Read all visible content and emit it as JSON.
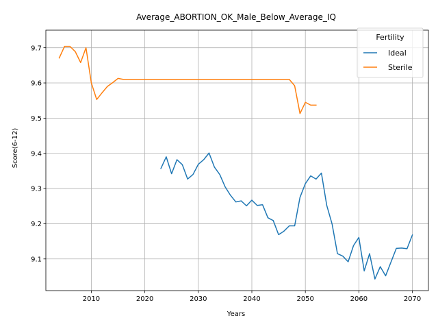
{
  "chart_data": {
    "type": "line",
    "title": "Average_ABORTION_OK_Male_Below_Average_IQ",
    "xlabel": "Years",
    "ylabel": "Score(6-12)",
    "xlim": [
      2001.5,
      2073
    ],
    "ylim": [
      9.01,
      9.75
    ],
    "xticks": [
      2010,
      2020,
      2030,
      2040,
      2050,
      2060,
      2070
    ],
    "yticks": [
      9.1,
      9.2,
      9.3,
      9.4,
      9.5,
      9.6,
      9.7
    ],
    "ytick_labels": [
      "9.1",
      "9.2",
      "9.3",
      "9.4",
      "9.5",
      "9.6",
      "9.7"
    ],
    "grid": true,
    "legend": {
      "title": "Fertility",
      "placement": "top-right"
    },
    "series": [
      {
        "name": "Ideal",
        "color": "#1f77b4",
        "x": [
          2023,
          2024,
          2025,
          2026,
          2027,
          2028,
          2029,
          2030,
          2031,
          2032,
          2033,
          2034,
          2035,
          2036,
          2037,
          2038,
          2039,
          2040,
          2041,
          2042,
          2043,
          2044,
          2045,
          2046,
          2047,
          2048,
          2049,
          2050,
          2051,
          2052,
          2053,
          2054,
          2055,
          2056,
          2057,
          2058,
          2059,
          2060,
          2061,
          2062,
          2063,
          2064,
          2065,
          2066,
          2067,
          2068,
          2069,
          2070
        ],
        "y": [
          9.357,
          9.39,
          9.342,
          9.382,
          9.368,
          9.327,
          9.34,
          9.369,
          9.382,
          9.401,
          9.361,
          9.34,
          9.305,
          9.281,
          9.262,
          9.265,
          9.251,
          9.267,
          9.252,
          9.254,
          9.217,
          9.209,
          9.169,
          9.179,
          9.194,
          9.194,
          9.275,
          9.314,
          9.336,
          9.327,
          9.344,
          9.252,
          9.199,
          9.115,
          9.108,
          9.092,
          9.138,
          9.161,
          9.066,
          9.115,
          9.043,
          9.078,
          9.052,
          9.091,
          9.13,
          9.131,
          9.129,
          9.168
        ]
      },
      {
        "name": "Sterile",
        "color": "#ff7f0e",
        "x": [
          2004,
          2005,
          2006,
          2007,
          2008,
          2009,
          2010,
          2011,
          2012,
          2013,
          2014,
          2015,
          2016,
          2017,
          2018,
          2019,
          2020,
          2021,
          2022,
          2023,
          2024,
          2025,
          2026,
          2027,
          2028,
          2029,
          2030,
          2031,
          2032,
          2033,
          2034,
          2035,
          2036,
          2037,
          2038,
          2039,
          2040,
          2041,
          2042,
          2043,
          2044,
          2045,
          2046,
          2047,
          2048,
          2049,
          2050,
          2051,
          2052
        ],
        "y": [
          9.671,
          9.704,
          9.704,
          9.689,
          9.658,
          9.7,
          9.6,
          9.553,
          9.572,
          9.59,
          9.601,
          9.613,
          9.61,
          9.61,
          9.61,
          9.61,
          9.61,
          9.61,
          9.61,
          9.61,
          9.61,
          9.61,
          9.61,
          9.61,
          9.61,
          9.61,
          9.61,
          9.61,
          9.61,
          9.61,
          9.61,
          9.61,
          9.61,
          9.61,
          9.61,
          9.61,
          9.61,
          9.61,
          9.61,
          9.61,
          9.61,
          9.61,
          9.61,
          9.61,
          9.592,
          9.513,
          9.545,
          9.537,
          9.537
        ]
      }
    ]
  }
}
